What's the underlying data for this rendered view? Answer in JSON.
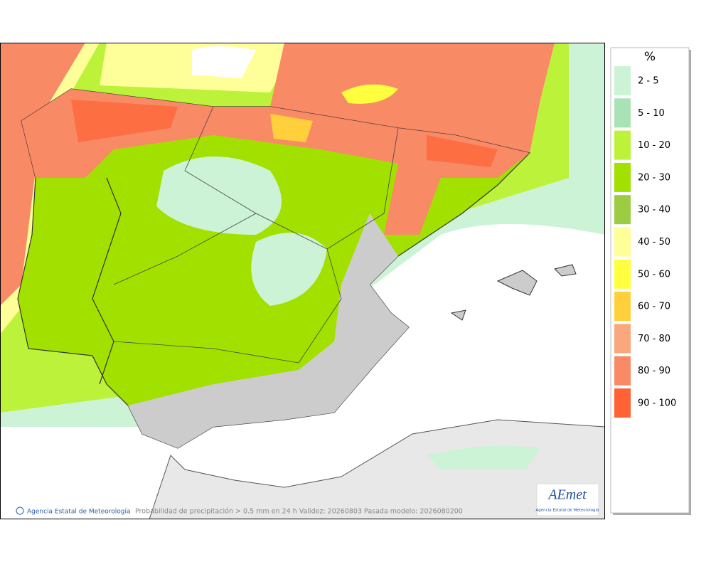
{
  "legend": {
    "title": "%",
    "items": [
      {
        "label": "2 - 5",
        "color": "#cdf3d6"
      },
      {
        "label": "5 - 10",
        "color": "#a9e3b5"
      },
      {
        "label": "10 - 20",
        "color": "#bdf23a"
      },
      {
        "label": "20 - 30",
        "color": "#a2e000"
      },
      {
        "label": "30 - 40",
        "color": "#9ccc42"
      },
      {
        "label": "40 - 50",
        "color": "#ffff9a"
      },
      {
        "label": "50 - 60",
        "color": "#ffff40"
      },
      {
        "label": "60 - 70",
        "color": "#ffd03c"
      },
      {
        "label": "70 - 80",
        "color": "#f8a87c"
      },
      {
        "label": "80 - 90",
        "color": "#f98a66"
      },
      {
        "label": "90 - 100",
        "color": "#ff6234"
      }
    ]
  },
  "footer": {
    "credit": "Agencia Estatal de Meteorología",
    "caption": "Probabilidad de precipitación > 0.5 mm en 24 h Validez: 20260803 Pasada modelo: 2026080200"
  },
  "logo": {
    "name": "AEmet",
    "subtitle": "Agencia Estatal de Meteorología"
  }
}
